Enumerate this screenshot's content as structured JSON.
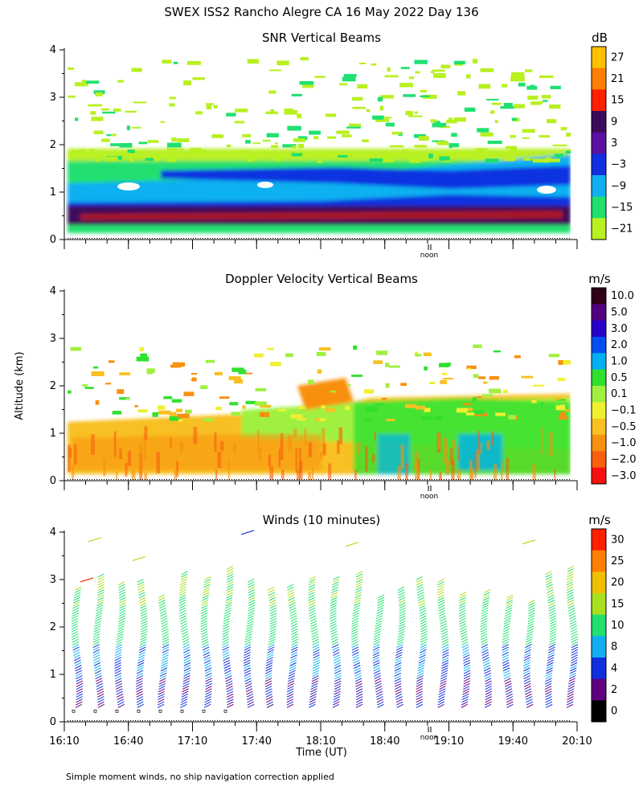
{
  "page": {
    "title": "SWEX ISS2 Rancho Alegre CA  16 May 2022 Day 136",
    "footnote": "Simple moment winds, no ship navigation correction applied",
    "shared_ylabel": "Altitude (km)",
    "xlabel": "Time (UT)",
    "noon_label": "noon"
  },
  "chart_data": [
    {
      "type": "heatmap",
      "title": "SNR Vertical Beams",
      "unit": "dB",
      "ylabel": "Altitude (km)",
      "xlabel": "Time (UT)",
      "ylim": [
        0,
        4
      ],
      "yticks": [
        "0",
        "1",
        "2",
        "3",
        "4"
      ],
      "xlim": [
        "16:10",
        "20:10"
      ],
      "colorbar": {
        "labels": [
          "27",
          "21",
          "15",
          "9",
          "3",
          "−3",
          "−9",
          "−15",
          "−21"
        ],
        "colors": [
          "#ffc000",
          "#ff8000",
          "#ff2000",
          "#3c0a5a",
          "#5a10a0",
          "#1030e0",
          "#10b0f0",
          "#20e070",
          "#b8f020"
        ]
      },
      "layers": [
        {
          "name": "strong_band",
          "altitude_km": [
            0.4,
            0.65
          ],
          "value_db": 12
        },
        {
          "name": "blue_layer",
          "altitude_km": [
            1.2,
            1.6
          ],
          "value_db": -3
        },
        {
          "name": "cyan_layer",
          "altitude_km": [
            0.7,
            1.8
          ],
          "value_db": -9
        },
        {
          "name": "weak_echoes",
          "altitude_km": [
            1.8,
            3.9
          ],
          "value_db": -18
        }
      ]
    },
    {
      "type": "heatmap",
      "title": "Doppler Velocity Vertical Beams",
      "unit": "m/s",
      "ylim": [
        0,
        4
      ],
      "yticks": [
        "0",
        "1",
        "2",
        "3",
        "4"
      ],
      "xlim": [
        "16:10",
        "20:10"
      ],
      "colorbar": {
        "labels": [
          "10.0",
          "5.0",
          "3.0",
          "2.0",
          "1.0",
          "0.5",
          "0.1",
          "−0.1",
          "−0.5",
          "−1.0",
          "−2.0",
          "−3.0"
        ],
        "colors": [
          "#300018",
          "#500080",
          "#2800c8",
          "#0050f0",
          "#00b0f0",
          "#30e030",
          "#a0f040",
          "#f0f030",
          "#f8c020",
          "#f89010",
          "#f86010",
          "#f81010"
        ]
      },
      "layers": [
        {
          "name": "boundary_layer",
          "altitude_km": [
            0.1,
            1.3
          ],
          "value_ms": -0.5
        },
        {
          "name": "mid_layer",
          "altitude_km": [
            1.3,
            1.9
          ],
          "value_ms": 0.3
        },
        {
          "name": "upper_scatter",
          "altitude_km": [
            2.0,
            2.9
          ],
          "value_ms": -1.0
        }
      ]
    },
    {
      "type": "wind-barbs",
      "title": "Winds (10 minutes)",
      "unit": "m/s",
      "ylim": [
        0,
        4
      ],
      "yticks": [
        "0",
        "1",
        "2",
        "3",
        "4"
      ],
      "xticks": [
        "16:10",
        "16:40",
        "17:10",
        "17:40",
        "18:10",
        "18:40",
        "19:10",
        "19:40",
        "20:10"
      ],
      "xlabel": "Time (UT)",
      "colorbar": {
        "labels": [
          "30",
          "25",
          "20",
          "15",
          "10",
          "8",
          "4",
          "2",
          "0"
        ],
        "colors": [
          "#ff2000",
          "#ff8000",
          "#f0c000",
          "#a8e020",
          "#20e070",
          "#10b0f0",
          "#1030e0",
          "#600080",
          "#000000"
        ]
      },
      "profiles_count": 24,
      "barb_color_by_height": [
        {
          "altitude_km": [
            0.1,
            0.9
          ],
          "speed_ms": 4
        },
        {
          "altitude_km": [
            0.9,
            1.6
          ],
          "speed_ms": 8
        },
        {
          "altitude_km": [
            1.6,
            2.4
          ],
          "speed_ms": 12
        },
        {
          "altitude_km": [
            2.4,
            3.3
          ],
          "speed_ms": 15
        }
      ]
    }
  ]
}
